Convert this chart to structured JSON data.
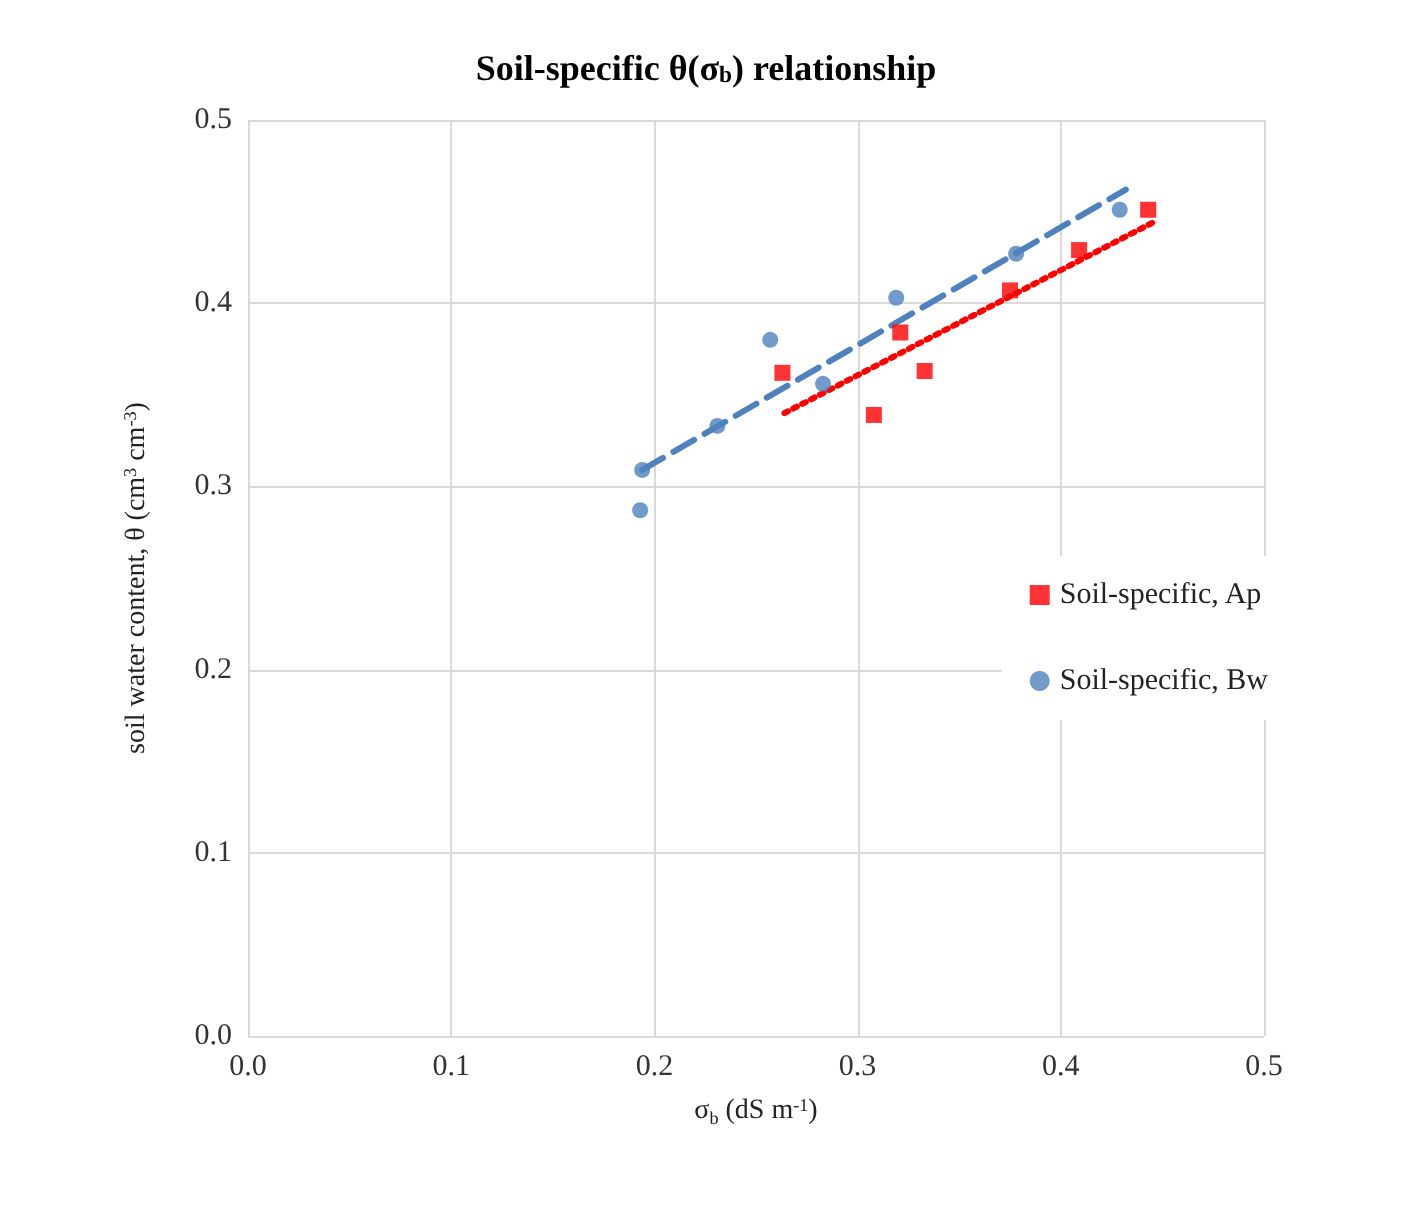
{
  "chart_data": {
    "type": "scatter",
    "title": "Soil-specific θ(σ$_{b}$) relationship",
    "xlabel": "σ$_{b}$ (dS m$^{-1}$)",
    "ylabel": "soil water content, θ (cm$^{3}$ cm$^{-3}$)",
    "xlim": [
      0,
      0.5
    ],
    "xticks": [
      {
        "value": 0,
        "label": "0.0"
      },
      0.1,
      0.2,
      0.3,
      0.4,
      0.5
    ],
    "ylim": [
      0,
      0.5
    ],
    "yticks": [
      {
        "value": 0,
        "label": "0.0"
      },
      0.1,
      0.2,
      0.3,
      0.4,
      0.5
    ],
    "grid": true,
    "legend": "right",
    "series": [
      {
        "name": "Soil-specific, Ap",
        "color": "#ff0000",
        "marker": "square",
        "x": [
          0.263,
          0.308,
          0.321,
          0.333,
          0.375,
          0.409,
          0.443
        ],
        "values": [
          0.362,
          0.339,
          0.384,
          0.363,
          0.407,
          0.429,
          0.451
        ]
      },
      {
        "name": "Soil-specific, Bw",
        "color": "#4f81bd",
        "marker": "circle",
        "x": [
          0.193,
          0.194,
          0.231,
          0.257,
          0.283,
          0.319,
          0.378,
          0.429
        ],
        "values": [
          0.287,
          0.309,
          0.333,
          0.38,
          0.356,
          0.403,
          0.427,
          0.451
        ]
      },
      {
        "type": "line",
        "color": "#ff0000",
        "line_style": "dotted",
        "x": [
          0.264,
          0.447
        ],
        "values": [
          0.34,
          0.445
        ]
      },
      {
        "type": "line",
        "color": "#4f81bd",
        "line_style": "dashed",
        "x": [
          0.194,
          0.432
        ],
        "values": [
          0.309,
          0.462
        ]
      }
    ]
  }
}
